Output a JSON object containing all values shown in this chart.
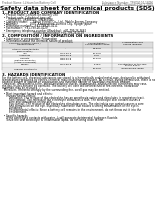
{
  "bg_color": "#ffffff",
  "header_left": "Product Name: Lithium Ion Battery Cell",
  "header_right_line1": "Substance Number: TPSDS104-180M",
  "header_right_line2": "Establishment / Revision: Dec 1 2010",
  "title": "Safety data sheet for chemical products (SDS)",
  "section1_title": "1. PRODUCT AND COMPANY IDENTIFICATION",
  "section1_lines": [
    "  • Product name: Lithium Ion Battery Cell",
    "  • Product code: Cylindrical-type cell",
    "       (UR18650, UR18650Z, UR18650A)",
    "  • Company name:      Sanyo Electric Co., Ltd., Mobile Energy Company",
    "  • Address:              2001  Kamiyashiro, Sumoto City, Hyogo, Japan",
    "  • Telephone number:   +81-799-26-4111",
    "  • Fax number:  +81-799-26-4129",
    "  • Emergency telephone number (Weekday): +81-799-26-3662",
    "                                    (Night and holiday): +81-799-26-4129"
  ],
  "section2_title": "2. COMPOSITION / INFORMATION ON INGREDIENTS",
  "section2_lines": [
    "  • Substance or preparation: Preparation",
    "  • Information about the chemical nature of product:"
  ],
  "table_headers": [
    "Common chemical name /\nGeneral name",
    "CAS number",
    "Concentration /\nConcentration range",
    "Classification and\nhazard labeling"
  ],
  "table_rows": [
    [
      "Lithium oxide/tantalite\n(LiMnCoNiO2)",
      "-",
      "30-50%",
      ""
    ],
    [
      "Iron",
      "7439-89-6",
      "10-25%",
      ""
    ],
    [
      "Aluminum",
      "7429-90-5",
      "2-5%",
      ""
    ],
    [
      "Graphite\n(Natural graphite)\n(Artificial graphite)",
      "7782-42-5\n7782-42-5",
      "10-25%",
      ""
    ],
    [
      "Copper",
      "7440-50-8",
      "5-15%",
      "Sensitization of the skin\ngroup R43.2"
    ],
    [
      "Organic electrolyte",
      "-",
      "10-20%",
      "Inflammable liquid"
    ]
  ],
  "section3_title": "3. HAZARDS IDENTIFICATION",
  "section3_lines": [
    "For the battery cell, chemical substances are stored in a hermetically sealed metal case, designed to withstand",
    "temperatures produced by electro-chemical reaction during normal use. As a result, during normal use, there is no",
    "physical danger of ignition or vaporization and therefore danger of hazardous materials leakage.",
    "  However, if exposed to a fire, added mechanical shocks, decomposed, whilen electric current are may case,",
    "the gas insides content be operated. The battery cell case will be breached of fire-extreme, hazardous",
    "materials may be released.",
    "  Moreover, if heated strongly by the surrounding fire, scroll gas may be emitted.",
    "",
    "  • Most important hazard and effects:",
    "     Human health effects:",
    "        Inhalation: The release of the electrolyte has an anesthesia action and stimulates in respiratory tract.",
    "        Skin contact: The release of the electrolyte stimulates a skin. The electrolyte skin contact causes a",
    "        sore and stimulation on the skin.",
    "        Eye contact: The release of the electrolyte stimulates eyes. The electrolyte eye contact causes a sore",
    "        and stimulation on the eye. Especially, substance that causes a strong inflammation of the eye is",
    "        contained.",
    "        Environmental effects: Since a battery cell remains in the environment, do not throw out it into the",
    "        environment.",
    "",
    "  • Specific hazards:",
    "     If the electrolyte contacts with water, it will generate detrimental hydrogen fluoride.",
    "     Since the seal electrolyte is inflammable liquid, do not bring close to fire."
  ],
  "header_lw": 0.4,
  "section_lw": 0.3,
  "table_lw": 0.3,
  "header_color": "#aaaaaa",
  "line_color": "#999999",
  "table_line_color": "#999999",
  "header_bg": "#dddddd",
  "header_text_size": 2.0,
  "title_size": 4.2,
  "section_title_size": 2.8,
  "body_text_size": 1.9,
  "table_text_size": 1.7
}
